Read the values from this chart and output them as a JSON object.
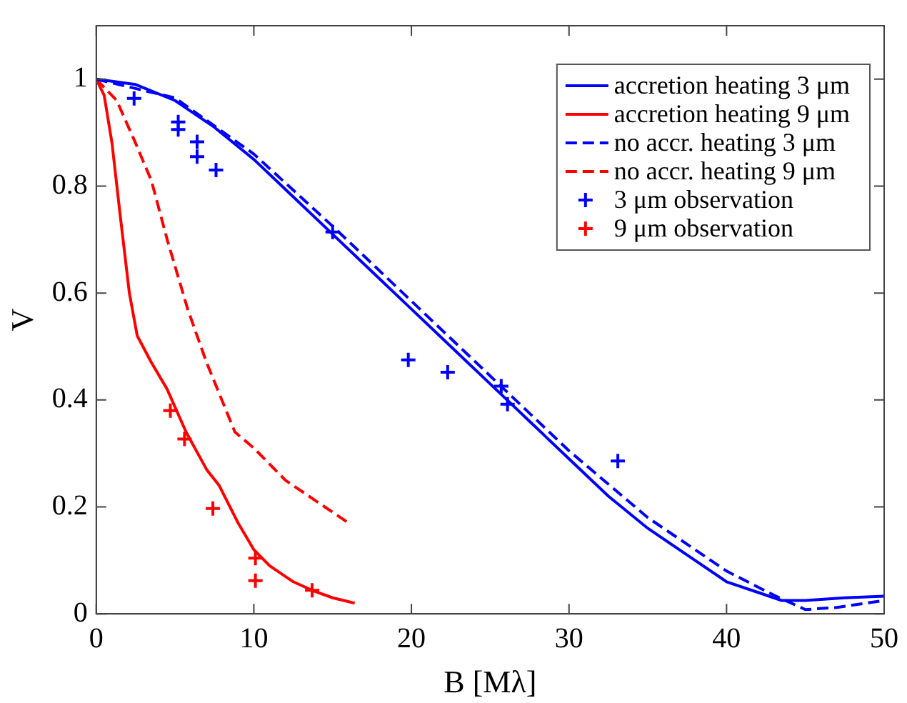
{
  "chart_data": {
    "type": "line",
    "xlabel": "B [Mλ]",
    "ylabel": "V",
    "xlim": [
      0,
      50
    ],
    "ylim": [
      0,
      1.1
    ],
    "xticks": [
      0,
      10,
      20,
      30,
      40,
      50
    ],
    "yticks": [
      0,
      0.2,
      0.4,
      0.6,
      0.8,
      1
    ],
    "grid": false,
    "legend": "top right",
    "series": [
      {
        "name": "accretion heating 3 μm",
        "color": "#0000ff",
        "line_style": "solid",
        "marker": "none",
        "x": [
          0,
          2.5,
          5,
          7.5,
          10,
          12.5,
          15,
          17.5,
          20,
          22.5,
          25,
          27.5,
          30,
          32.5,
          35,
          37.5,
          40,
          42,
          43.5,
          45,
          47.5,
          50
        ],
        "values": [
          1,
          0.99,
          0.96,
          0.91,
          0.85,
          0.78,
          0.71,
          0.64,
          0.57,
          0.5,
          0.43,
          0.36,
          0.29,
          0.22,
          0.16,
          0.11,
          0.06,
          0.04,
          0.025,
          0.025,
          0.03,
          0.033
        ]
      },
      {
        "name": "accretion heating 9 μm",
        "color": "#ff0000",
        "line_style": "solid",
        "marker": "none",
        "x": [
          0,
          0.5,
          1,
          1.5,
          2.1,
          2.6,
          3.5,
          4.5,
          5.7,
          7,
          7.8,
          9,
          10,
          11,
          12.5,
          13.7,
          15,
          16.4
        ],
        "values": [
          1,
          0.97,
          0.88,
          0.75,
          0.6,
          0.52,
          0.47,
          0.42,
          0.34,
          0.27,
          0.24,
          0.17,
          0.12,
          0.09,
          0.06,
          0.044,
          0.03,
          0.02
        ]
      },
      {
        "name": "no accr. heating 3 μm",
        "color": "#0000ff",
        "line_style": "dashed",
        "marker": "none",
        "x": [
          0,
          5,
          10,
          15,
          20,
          25,
          30,
          35,
          40,
          43,
          45,
          47,
          50
        ],
        "values": [
          1,
          0.965,
          0.86,
          0.725,
          0.585,
          0.445,
          0.305,
          0.18,
          0.08,
          0.035,
          0.008,
          0.012,
          0.025
        ]
      },
      {
        "name": "no accr. heating 9 μm",
        "color": "#ff0000",
        "line_style": "dashed",
        "marker": "none",
        "x": [
          0,
          1.3,
          2.5,
          3.5,
          4.5,
          5.8,
          7,
          8.8,
          10,
          12,
          14,
          16
        ],
        "values": [
          1,
          0.96,
          0.88,
          0.81,
          0.7,
          0.57,
          0.47,
          0.34,
          0.31,
          0.25,
          0.21,
          0.17
        ]
      },
      {
        "name": "3 μm observation",
        "color": "#0000ff",
        "type": "scatter",
        "marker": "cross",
        "x": [
          2.4,
          5.2,
          5.2,
          6.4,
          6.4,
          7.6,
          15,
          19.8,
          22.3,
          25.7,
          26.1,
          33.1
        ],
        "values": [
          0.964,
          0.92,
          0.906,
          0.883,
          0.855,
          0.83,
          0.714,
          0.475,
          0.452,
          0.426,
          0.392,
          0.286
        ]
      },
      {
        "name": "9 μm observation",
        "color": "#ff0000",
        "type": "scatter",
        "marker": "cross",
        "x": [
          4.7,
          5.6,
          7.4,
          10.1,
          10.1,
          13.7
        ],
        "values": [
          0.38,
          0.327,
          0.197,
          0.104,
          0.062,
          0.044
        ]
      }
    ]
  }
}
